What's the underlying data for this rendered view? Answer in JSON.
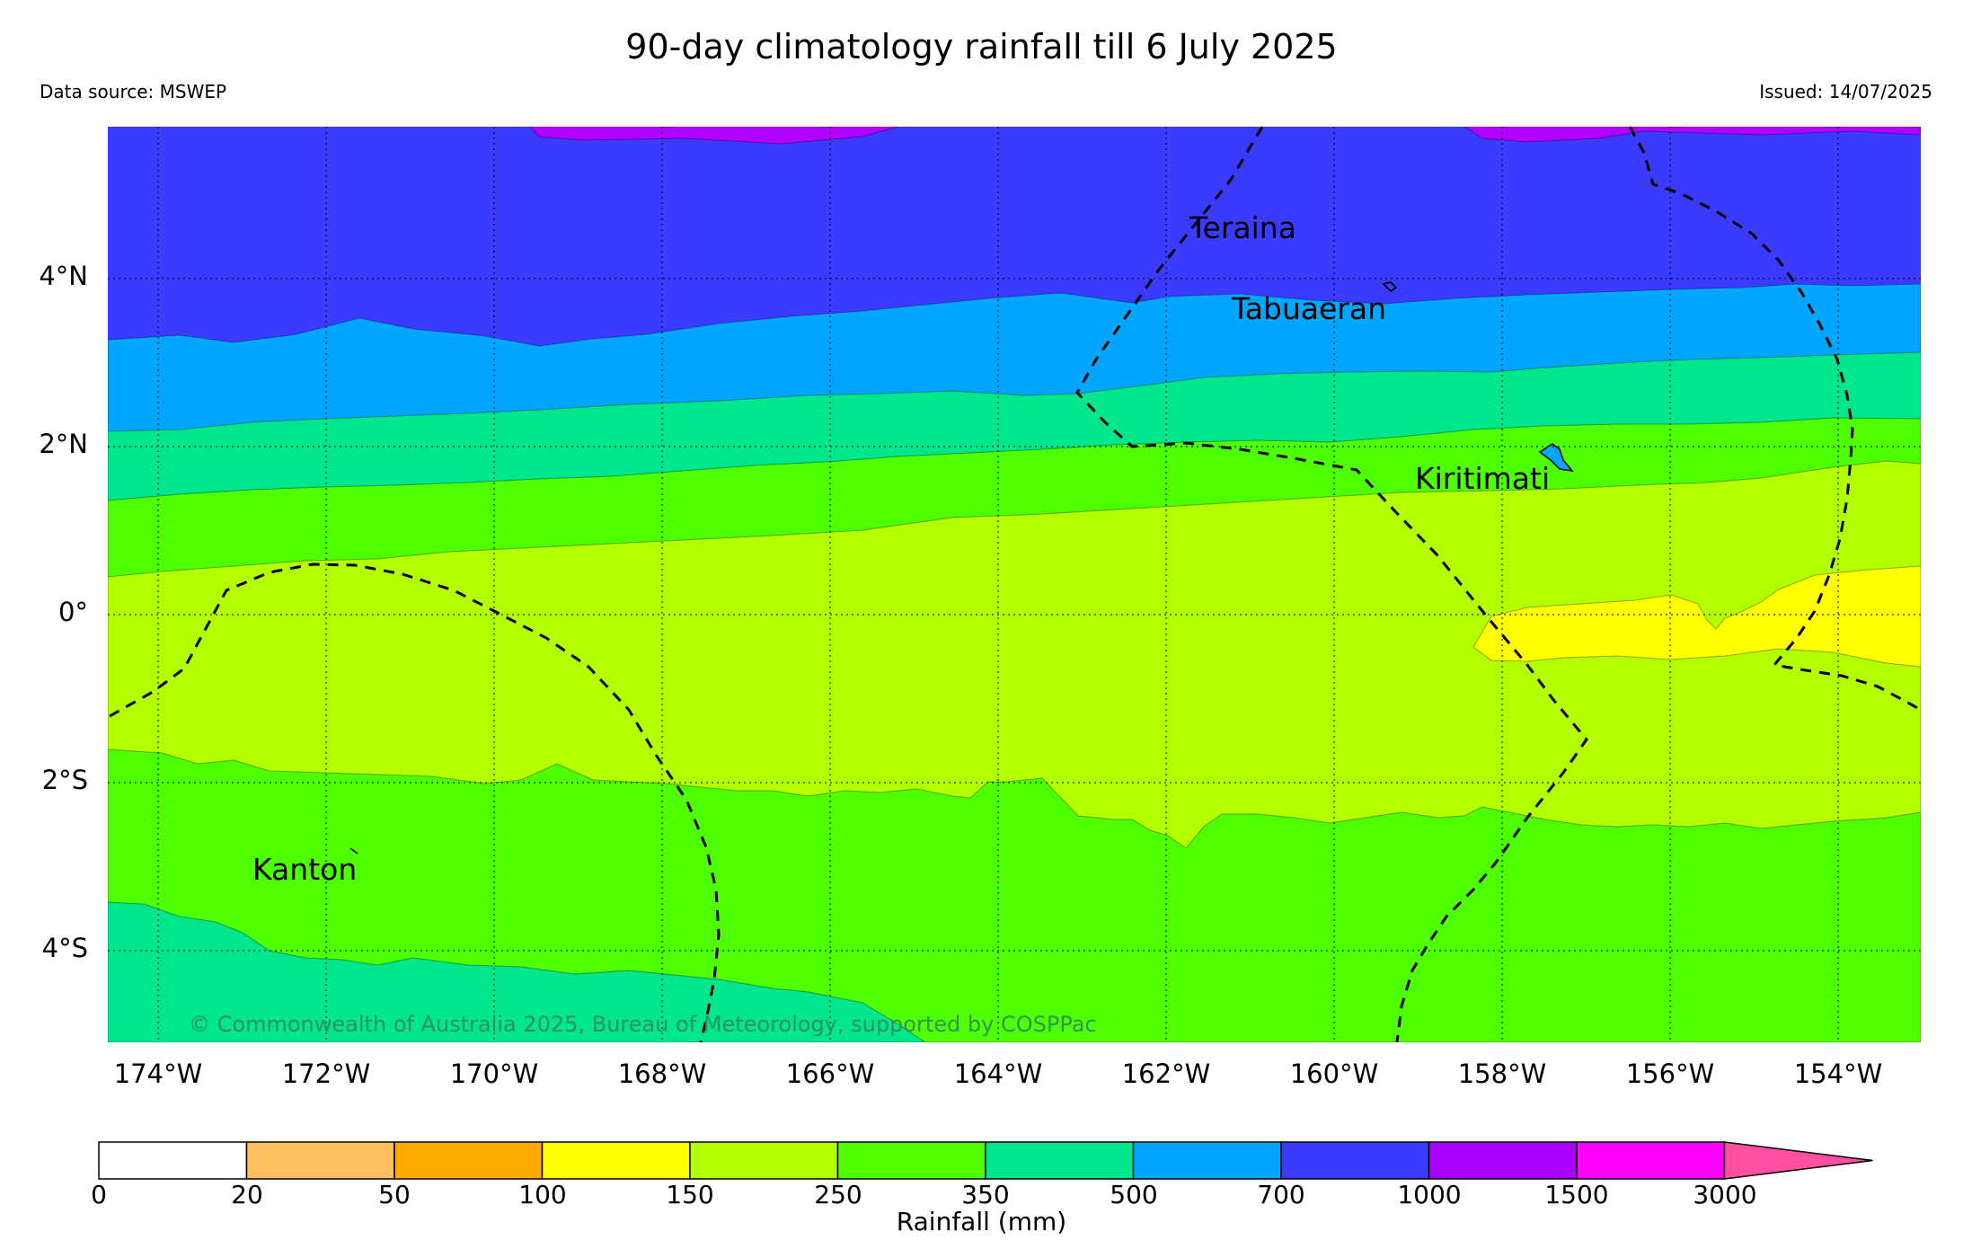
{
  "header": {
    "title": "90-day climatology rainfall till 6 July 2025",
    "data_source": "Data source: MSWEP",
    "issued": "Issued: 14/07/2025"
  },
  "map": {
    "lat_labels": [
      "4°N",
      "2°N",
      "0°",
      "2°S",
      "4°S"
    ],
    "lon_labels": [
      "174°W",
      "172°W",
      "170°W",
      "168°W",
      "166°W",
      "164°W",
      "162°W",
      "160°W",
      "158°W",
      "156°W",
      "154°W"
    ],
    "places": {
      "teraina": "Teraina",
      "tabuaeran": "Tabuaeran",
      "kiritimati": "Kiritimati",
      "kanton": "Kanton"
    },
    "copyright": "© Commonwealth of Australia 2025, Bureau of Meteorology, supported by COSPPac",
    "band_colors": {
      "b100_150": "#ffff00",
      "b150_250": "#b3ff00",
      "b250_350": "#4dff00",
      "b350_500": "#00e68c",
      "b500_700": "#00a6ff",
      "b700_1000": "#3b3bff",
      "b1000_1500": "#b000ff"
    }
  },
  "colorbar": {
    "title": "Rainfall (mm)",
    "labels": [
      "0",
      "20",
      "50",
      "100",
      "150",
      "250",
      "350",
      "500",
      "700",
      "1000",
      "1500",
      "3000"
    ],
    "colors": [
      "#ffffff",
      "#ffbf5e",
      "#ffaa00",
      "#ffff00",
      "#b3ff00",
      "#4dff00",
      "#00e68c",
      "#00a6ff",
      "#3b3bff",
      "#aa00ff",
      "#ff00ff",
      "#ff4fa3"
    ]
  }
}
